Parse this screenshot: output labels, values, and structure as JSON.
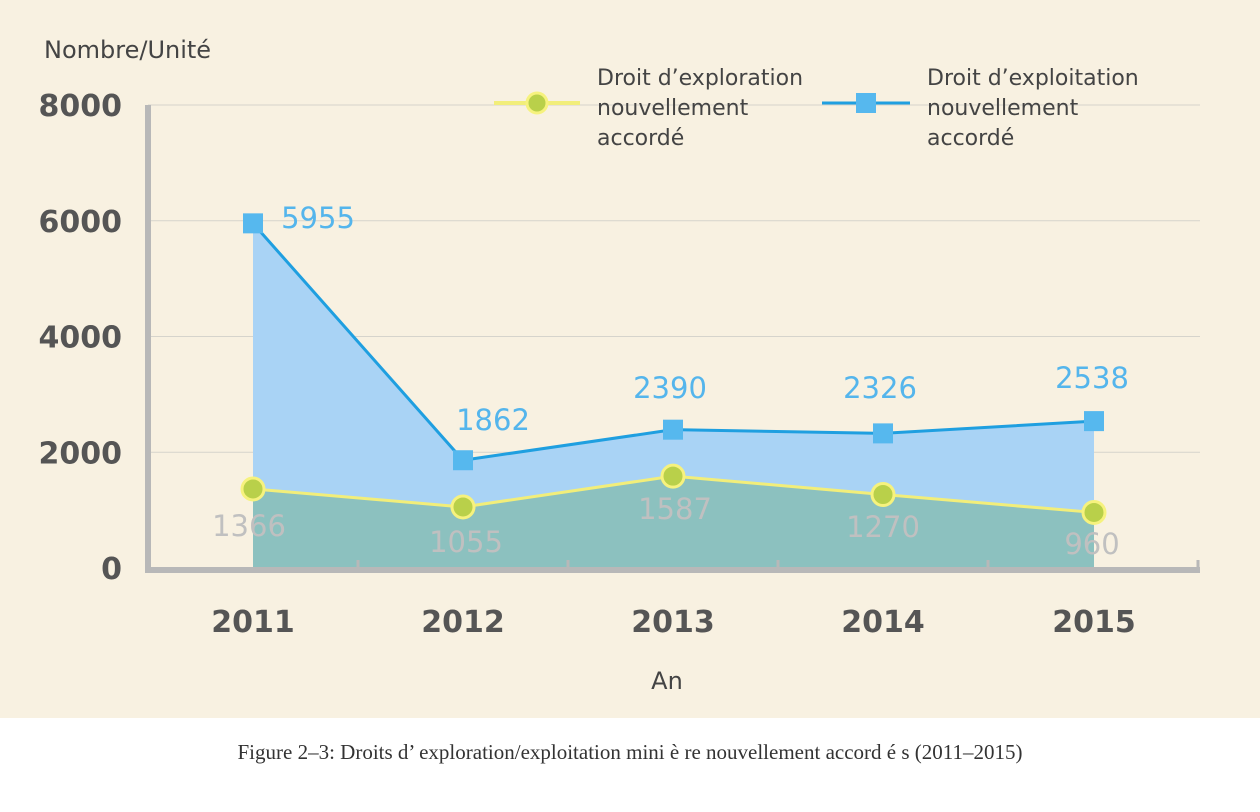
{
  "chart_data": {
    "type": "area",
    "x": [
      "2011",
      "2012",
      "2013",
      "2014",
      "2015"
    ],
    "series": [
      {
        "name": "Droit d’exploration nouvellement accordé",
        "legend_lines": [
          "Droit d’exploration",
          "nouvellement",
          "accordé"
        ],
        "values": [
          1366,
          1055,
          1587,
          1270,
          960
        ],
        "labels": [
          "1366",
          "1055",
          "1587",
          "1270",
          "960"
        ],
        "line_color": "#f2ee7a",
        "marker_color": "#b9d04a",
        "fill_color": "#8cc1bf",
        "marker": "circle"
      },
      {
        "name": "Droit d’exploitation nouvellement accordé",
        "legend_lines": [
          "Droit d’exploitation",
          "nouvellement",
          "accordé"
        ],
        "values": [
          5955,
          1862,
          2390,
          2326,
          2538
        ],
        "labels": [
          "5955",
          "1862",
          "2390",
          "2326",
          "2538"
        ],
        "line_color": "#1f9fe0",
        "marker_color": "#56b8ee",
        "fill_color": "#a9d3f5",
        "marker": "square"
      }
    ],
    "ylim": [
      0,
      8000
    ],
    "yticks": [
      "0",
      "2000",
      "4000",
      "6000",
      "8000"
    ],
    "ylabel": "Nombre/Unité",
    "xlabel": "An",
    "grid": true,
    "legend_position": "top-right",
    "background": "#f8f1e1"
  },
  "caption": "Figure 2–3: Droits d’ exploration/exploitation mini è re nouvellement accord é s (2011–2015)"
}
